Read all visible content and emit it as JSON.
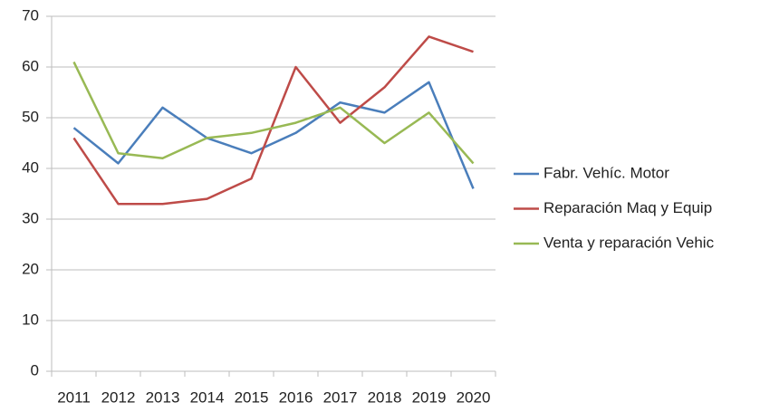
{
  "chart_data": {
    "type": "line",
    "categories": [
      "2011",
      "2012",
      "2013",
      "2014",
      "2015",
      "2016",
      "2017",
      "2018",
      "2019",
      "2020"
    ],
    "series": [
      {
        "name": "Fabr. Vehíc. Motor",
        "color": "#4a7ebb",
        "values": [
          48,
          41,
          52,
          46,
          43,
          47,
          53,
          51,
          57,
          36
        ]
      },
      {
        "name": "Reparación Maq y Equip",
        "color": "#be4b48",
        "values": [
          46,
          33,
          33,
          34,
          38,
          60,
          49,
          56,
          66,
          63
        ]
      },
      {
        "name": "Venta y reparación Vehic",
        "color": "#98b954",
        "values": [
          61,
          43,
          42,
          46,
          47,
          49,
          52,
          45,
          51,
          41
        ]
      }
    ],
    "ylim": [
      0,
      70
    ],
    "yticks": [
      0,
      10,
      20,
      30,
      40,
      50,
      60,
      70
    ],
    "grid": true,
    "legend": "right"
  }
}
